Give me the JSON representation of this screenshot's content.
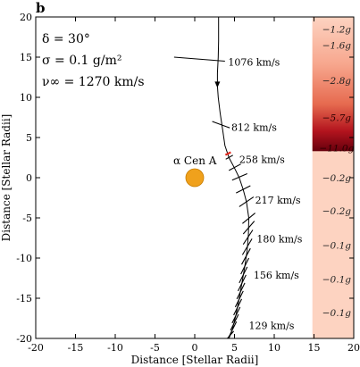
{
  "panel_label": "b",
  "chart_data": {
    "type": "scatter",
    "xlabel": "Distance [Stellar Radii]",
    "ylabel": "Distance [Stellar Radii]",
    "xlim": [
      -20,
      20
    ],
    "ylim": [
      -20,
      20
    ],
    "xticks": [
      -20,
      -15,
      -10,
      -5,
      0,
      5,
      10,
      15,
      20
    ],
    "yticks": [
      -20,
      -15,
      -10,
      -5,
      0,
      5,
      10,
      15,
      20
    ],
    "parameters": [
      "δ = 30°",
      "σ = 0.1 g/m²",
      "ν∞ = 1270 km/s"
    ],
    "star": {
      "label": "α Cen A",
      "x": 0,
      "y": 0,
      "color": "#f0a11c"
    },
    "trajectory": [
      [
        3.0,
        20
      ],
      [
        3.0,
        17
      ],
      [
        2.95,
        15
      ],
      [
        2.85,
        13
      ],
      [
        2.85,
        11.4
      ],
      [
        2.95,
        10
      ],
      [
        3.2,
        8
      ],
      [
        3.5,
        6
      ],
      [
        3.8,
        4
      ],
      [
        4.3,
        2.5
      ],
      [
        5.0,
        1.2
      ],
      [
        5.6,
        0
      ],
      [
        6.1,
        -1.5
      ],
      [
        6.5,
        -3
      ],
      [
        6.8,
        -5
      ],
      [
        6.75,
        -7
      ],
      [
        6.6,
        -9
      ],
      [
        6.3,
        -11
      ],
      [
        5.95,
        -13
      ],
      [
        5.6,
        -15
      ],
      [
        5.2,
        -17
      ],
      [
        4.7,
        -19
      ],
      [
        4.3,
        -20
      ]
    ],
    "arrow_point": [
      2.85,
      11.4
    ],
    "sail_ticks": [
      [
        2.9,
        14.7,
        -2.6,
        15.0,
        3.8,
        14.5
      ],
      [
        3.3,
        6.5,
        2.2,
        7.0,
        4.4,
        6.2
      ],
      [
        4.3,
        2.5,
        3.9,
        2.3,
        4.8,
        2.8
      ],
      [
        5.0,
        1.2,
        4.3,
        0.9,
        5.8,
        1.7
      ],
      [
        5.6,
        0.0,
        4.7,
        -0.3,
        6.6,
        0.5
      ],
      [
        6.1,
        -1.5,
        5.2,
        -1.9,
        7.0,
        -1.0
      ],
      [
        6.5,
        -3.0,
        5.6,
        -3.6,
        7.4,
        -2.4
      ],
      [
        6.8,
        -5.0,
        6.0,
        -5.7,
        7.6,
        -4.4
      ],
      [
        6.8,
        -6.2,
        6.1,
        -7.0,
        7.5,
        -5.4
      ],
      [
        6.7,
        -7.4,
        6.1,
        -8.3,
        7.3,
        -6.5
      ],
      [
        6.6,
        -8.6,
        6.0,
        -9.6,
        7.2,
        -7.6
      ],
      [
        6.45,
        -9.8,
        5.9,
        -10.8,
        7.0,
        -8.8
      ],
      [
        6.3,
        -11.0,
        5.8,
        -12.0,
        6.8,
        -10.0
      ],
      [
        6.1,
        -12.1,
        5.6,
        -13.1,
        6.6,
        -11.1
      ],
      [
        5.95,
        -13.1,
        5.45,
        -14.1,
        6.45,
        -12.1
      ],
      [
        5.8,
        -14.1,
        5.3,
        -15.1,
        6.3,
        -13.1
      ],
      [
        5.6,
        -15.1,
        5.1,
        -16.1,
        6.1,
        -14.1
      ],
      [
        5.4,
        -16.1,
        4.9,
        -17.1,
        5.9,
        -15.1
      ],
      [
        5.2,
        -17.1,
        4.7,
        -18.1,
        5.7,
        -16.1
      ],
      [
        5.0,
        -18.0,
        4.5,
        -19.0,
        5.5,
        -17.0
      ],
      [
        4.75,
        -18.9,
        4.25,
        -19.9,
        5.25,
        -17.9
      ],
      [
        4.5,
        -19.6,
        4.1,
        -20,
        4.9,
        -19.1
      ]
    ],
    "sail_tick_example_1": [
      2.9,
      14.7
    ],
    "velocity_labels": [
      {
        "text": "1076 km/s",
        "x": 4.2,
        "y": 14.4
      },
      {
        "text": "812 km/s",
        "x": 4.6,
        "y": 6.3
      },
      {
        "text": "258 km/s",
        "x": 5.6,
        "y": 2.3
      },
      {
        "text": "217 km/s",
        "x": 7.6,
        "y": -2.8
      },
      {
        "text": "180 km/s",
        "x": 7.8,
        "y": -7.6
      },
      {
        "text": "156 km/s",
        "x": 7.4,
        "y": -12.1
      },
      {
        "text": "129 km/s",
        "x": 6.8,
        "y": -18.4
      }
    ],
    "red_marker": {
      "x": 4.2,
      "y": 3.0,
      "color": "#e0281e"
    },
    "gravity_bar": {
      "xrange": [
        14.8,
        20
      ],
      "labels": [
        {
          "text": "−1.2g",
          "y": 18.5
        },
        {
          "text": "−1.6g",
          "y": 16.5
        },
        {
          "text": "−2.8g",
          "y": 12.1
        },
        {
          "text": "−5.7g",
          "y": 7.5
        },
        {
          "text": "−11.0g",
          "y": 3.7
        },
        {
          "text": "−0.2g",
          "y": 0.0
        },
        {
          "text": "−0.2g",
          "y": -4.1
        },
        {
          "text": "−0.2g",
          "y": -4.1
        },
        {
          "text": "−0.1g",
          "y": -8.4
        },
        {
          "text": "−0.1g",
          "y": -12.6
        },
        {
          "text": "−0.1g",
          "y": -16.8
        }
      ],
      "deceleration_band": {
        "ytop": 20,
        "ybottom": 3.3
      },
      "colors": {
        "light": "#fdd3c1",
        "mid": "#e66a4f",
        "dark": "#67000d"
      }
    }
  }
}
